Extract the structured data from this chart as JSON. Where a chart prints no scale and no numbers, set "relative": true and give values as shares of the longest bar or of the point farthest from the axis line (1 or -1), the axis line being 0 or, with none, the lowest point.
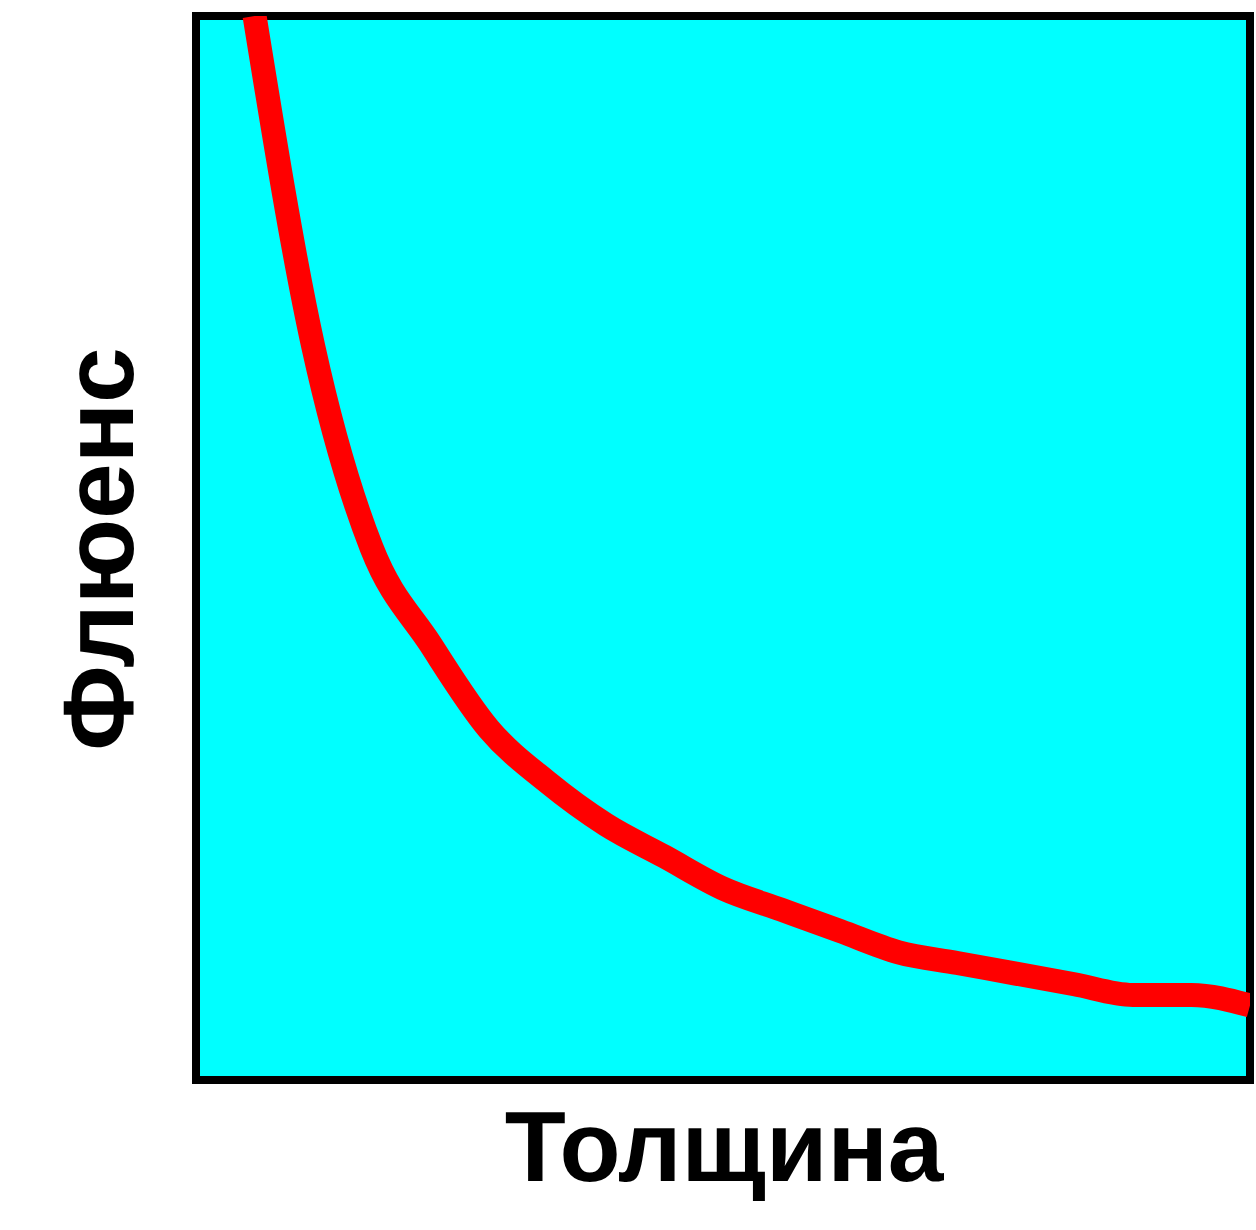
{
  "chart_data": {
    "type": "line",
    "relative": true,
    "xlabel": "Толщина",
    "ylabel": "Флюенс",
    "categories": [
      null,
      null,
      null,
      null,
      null,
      null,
      null,
      null,
      null,
      null,
      null,
      null,
      null,
      null,
      null,
      null,
      null,
      null,
      null
    ],
    "series": [
      {
        "color": "#ff0000",
        "values": [
          null,
          1,
          0.69,
          0.5,
          0.41,
          0.33,
          0.28,
          0.24,
          0.21,
          0.18,
          0.16,
          0.14,
          0.12,
          0.11,
          0.1,
          0.09,
          0.08,
          0.08,
          0.07
        ]
      }
    ],
    "grid": false,
    "marker": "none",
    "line_style": "solid"
  }
}
